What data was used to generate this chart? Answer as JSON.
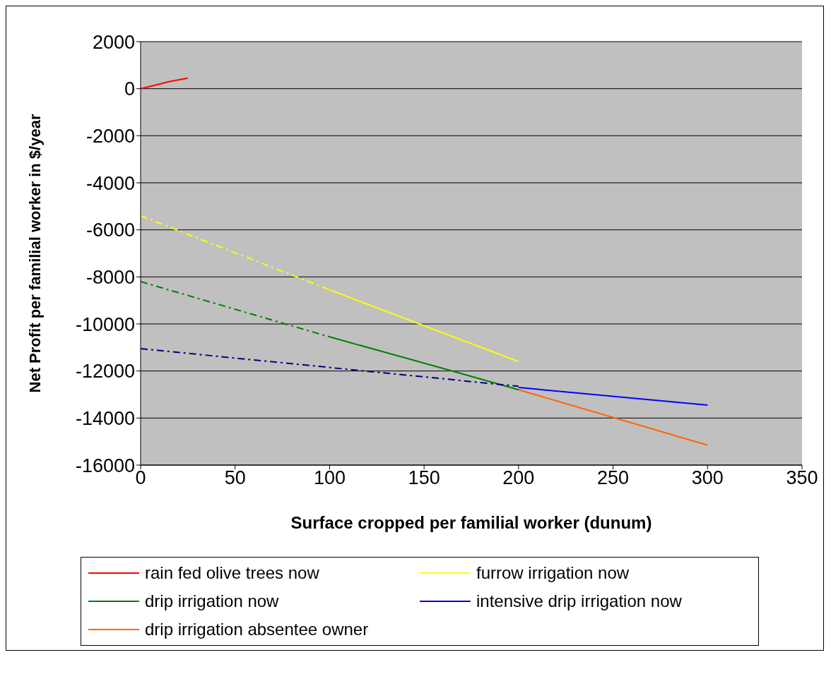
{
  "chart_data": {
    "type": "line",
    "xlabel": "Surface cropped per familial worker (dunum)",
    "ylabel": "Net Profit per familial worker  in $/year",
    "xlim": [
      0,
      350
    ],
    "xticks": [
      0,
      50,
      100,
      150,
      200,
      250,
      300,
      350
    ],
    "ylim": [
      -16000,
      2000
    ],
    "yticks": [
      -16000,
      -14000,
      -12000,
      -10000,
      -8000,
      -6000,
      -4000,
      -2000,
      0,
      2000
    ],
    "grid": "y",
    "legend": "bottom",
    "marker": "none",
    "series": [
      {
        "name": "rain fed olive trees now",
        "color": "#ff0000",
        "x": [
          0,
          15,
          25
        ],
        "values": [
          0,
          300,
          450
        ],
        "line_style": "solid"
      },
      {
        "name": "furrow irrigation now",
        "color": "#ffff00",
        "x": [
          100,
          200
        ],
        "values": [
          -8550,
          -11600
        ],
        "line_style": "solid"
      },
      {
        "name": "drip irrigation now",
        "color": "#008000",
        "x": [
          100,
          165,
          200
        ],
        "values": [
          -10550,
          -12000,
          -12800
        ],
        "line_style": "solid"
      },
      {
        "name": "intensive drip irrigation now",
        "color": "#0000ff",
        "x": [
          200,
          300
        ],
        "values": [
          -12700,
          -13450
        ],
        "line_style": "solid"
      },
      {
        "name": "drip irrigation absentee owner",
        "color": "#ff6600",
        "x": [
          200,
          300
        ],
        "values": [
          -12800,
          -15150
        ],
        "line_style": "solid"
      },
      {
        "color": "#ffff00",
        "x": [
          0,
          100
        ],
        "values": [
          -5400,
          -8550
        ],
        "line_style": "dashed"
      },
      {
        "color": "#008000",
        "x": [
          0,
          100
        ],
        "values": [
          -8200,
          -10550
        ],
        "line_style": "dashed"
      },
      {
        "color": "#000080",
        "x": [
          0,
          200
        ],
        "values": [
          -11050,
          -12650
        ],
        "line_style": "dashed"
      }
    ]
  }
}
